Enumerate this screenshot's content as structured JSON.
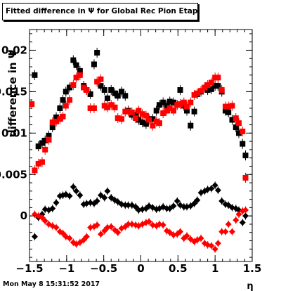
{
  "chart_data": {
    "type": "scatter",
    "title": "Fitted difference in  Ψ  for Global Rec Pion EtapT",
    "xlabel": "η",
    "ylabel": "difference in Ψ",
    "xlim": [
      -1.5,
      1.5
    ],
    "ylim": [
      -0.0055,
      0.0225
    ],
    "x_ticks": [
      -1.5,
      -1,
      -0.5,
      0,
      0.5,
      1,
      1.5
    ],
    "x_tick_labels": [
      "−1.5",
      "−1",
      "−0.5",
      "0",
      "0.5",
      "1",
      "1.5"
    ],
    "y_ticks": [
      0,
      0.005,
      0.01,
      0.015,
      0.02
    ],
    "y_tick_labels": [
      "0",
      "0.005",
      "0.01",
      "0.015",
      "0.02"
    ],
    "grid": false,
    "legend": "none",
    "series": [
      {
        "marker": "square",
        "color": "#000000",
        "points": [
          [
            -1.43,
            0.017
          ],
          [
            -1.38,
            0.0084
          ],
          [
            -1.33,
            0.0088
          ],
          [
            -1.29,
            0.0091
          ],
          [
            -1.24,
            0.0097
          ],
          [
            -1.19,
            0.0107
          ],
          [
            -1.14,
            0.0119
          ],
          [
            -1.09,
            0.013
          ],
          [
            -1.05,
            0.014
          ],
          [
            -1.01,
            0.015
          ],
          [
            -0.96,
            0.0155
          ],
          [
            -0.91,
            0.0188
          ],
          [
            -0.87,
            0.0182
          ],
          [
            -0.82,
            0.0175
          ],
          [
            -0.77,
            0.0157
          ],
          [
            -0.73,
            0.0152
          ],
          [
            -0.68,
            0.0147
          ],
          [
            -0.63,
            0.0183
          ],
          [
            -0.59,
            0.0197
          ],
          [
            -0.54,
            0.0157
          ],
          [
            -0.49,
            0.0152
          ],
          [
            -0.45,
            0.0142
          ],
          [
            -0.4,
            0.0152
          ],
          [
            -0.35,
            0.0148
          ],
          [
            -0.31,
            0.0145
          ],
          [
            -0.26,
            0.015
          ],
          [
            -0.21,
            0.0145
          ],
          [
            -0.17,
            0.0127
          ],
          [
            -0.12,
            0.0122
          ],
          [
            -0.07,
            0.0122
          ],
          [
            -0.03,
            0.0116
          ],
          [
            0.02,
            0.0113
          ],
          [
            0.07,
            0.0111
          ],
          [
            0.11,
            0.0117
          ],
          [
            0.16,
            0.0117
          ],
          [
            0.21,
            0.0127
          ],
          [
            0.25,
            0.0134
          ],
          [
            0.3,
            0.0137
          ],
          [
            0.35,
            0.0133
          ],
          [
            0.39,
            0.0138
          ],
          [
            0.44,
            0.0137
          ],
          [
            0.49,
            0.0134
          ],
          [
            0.53,
            0.0152
          ],
          [
            0.58,
            0.0133
          ],
          [
            0.62,
            0.0127
          ],
          [
            0.67,
            0.0109
          ],
          [
            0.72,
            0.0126
          ],
          [
            0.76,
            0.0147
          ],
          [
            0.81,
            0.015
          ],
          [
            0.86,
            0.0155
          ],
          [
            0.9,
            0.0152
          ],
          [
            0.95,
            0.0153
          ],
          [
            1.0,
            0.0157
          ],
          [
            1.04,
            0.0157
          ],
          [
            1.09,
            0.015
          ],
          [
            1.14,
            0.0127
          ],
          [
            1.18,
            0.0125
          ],
          [
            1.23,
            0.0116
          ],
          [
            1.28,
            0.0107
          ],
          [
            1.32,
            0.01
          ],
          [
            1.37,
            0.0087
          ],
          [
            1.41,
            0.0073
          ]
        ]
      },
      {
        "marker": "square",
        "color": "#ff0000",
        "points": [
          [
            -1.47,
            0.0135
          ],
          [
            -1.43,
            0.0055
          ],
          [
            -1.38,
            0.0063
          ],
          [
            -1.33,
            0.0065
          ],
          [
            -1.29,
            0.008
          ],
          [
            -1.24,
            0.0092
          ],
          [
            -1.19,
            0.0113
          ],
          [
            -1.14,
            0.0114
          ],
          [
            -1.09,
            0.0117
          ],
          [
            -1.05,
            0.012
          ],
          [
            -1.01,
            0.0133
          ],
          [
            -0.96,
            0.014
          ],
          [
            -0.91,
            0.0158
          ],
          [
            -0.87,
            0.0167
          ],
          [
            -0.82,
            0.017
          ],
          [
            -0.77,
            0.0155
          ],
          [
            -0.73,
            0.0152
          ],
          [
            -0.68,
            0.013
          ],
          [
            -0.63,
            0.013
          ],
          [
            -0.59,
            0.0162
          ],
          [
            -0.54,
            0.0165
          ],
          [
            -0.49,
            0.0133
          ],
          [
            -0.45,
            0.0131
          ],
          [
            -0.4,
            0.0134
          ],
          [
            -0.35,
            0.0131
          ],
          [
            -0.31,
            0.0118
          ],
          [
            -0.26,
            0.0117
          ],
          [
            -0.21,
            0.0126
          ],
          [
            -0.17,
            0.0126
          ],
          [
            -0.12,
            0.0125
          ],
          [
            -0.07,
            0.0118
          ],
          [
            -0.03,
            0.0127
          ],
          [
            0.02,
            0.0123
          ],
          [
            0.07,
            0.0121
          ],
          [
            0.11,
            0.0116
          ],
          [
            0.16,
            0.0109
          ],
          [
            0.21,
            0.0114
          ],
          [
            0.25,
            0.0112
          ],
          [
            0.3,
            0.0124
          ],
          [
            0.35,
            0.0127
          ],
          [
            0.39,
            0.013
          ],
          [
            0.44,
            0.0127
          ],
          [
            0.49,
            0.0134
          ],
          [
            0.53,
            0.0135
          ],
          [
            0.58,
            0.0137
          ],
          [
            0.62,
            0.0132
          ],
          [
            0.67,
            0.0137
          ],
          [
            0.72,
            0.0146
          ],
          [
            0.76,
            0.0148
          ],
          [
            0.81,
            0.0151
          ],
          [
            0.86,
            0.0155
          ],
          [
            0.9,
            0.0158
          ],
          [
            0.95,
            0.0161
          ],
          [
            1.0,
            0.0167
          ],
          [
            1.04,
            0.0167
          ],
          [
            1.09,
            0.0152
          ],
          [
            1.14,
            0.0132
          ],
          [
            1.18,
            0.0132
          ],
          [
            1.23,
            0.0133
          ],
          [
            1.28,
            0.0118
          ],
          [
            1.32,
            0.0112
          ],
          [
            1.37,
            0.0102
          ],
          [
            1.41,
            0.0046
          ]
        ]
      },
      {
        "marker": "diamond",
        "color": "#000000",
        "points": [
          [
            -1.43,
            -0.0025
          ],
          [
            -1.38,
            -0.0002
          ],
          [
            -1.33,
            0.0002
          ],
          [
            -1.29,
            0.0008
          ],
          [
            -1.24,
            0.0007
          ],
          [
            -1.19,
            0.0009
          ],
          [
            -1.14,
            0.0016
          ],
          [
            -1.09,
            0.0024
          ],
          [
            -1.05,
            0.0025
          ],
          [
            -1.01,
            0.0026
          ],
          [
            -0.96,
            0.0024
          ],
          [
            -0.91,
            0.0035
          ],
          [
            -0.87,
            0.003
          ],
          [
            -0.82,
            0.0025
          ],
          [
            -0.77,
            0.0014
          ],
          [
            -0.73,
            0.0015
          ],
          [
            -0.68,
            0.0016
          ],
          [
            -0.63,
            0.0015
          ],
          [
            -0.59,
            0.0018
          ],
          [
            -0.54,
            0.0025
          ],
          [
            -0.49,
            0.0022
          ],
          [
            -0.45,
            0.003
          ],
          [
            -0.4,
            0.0022
          ],
          [
            -0.35,
            0.0019
          ],
          [
            -0.31,
            0.0017
          ],
          [
            -0.26,
            0.0014
          ],
          [
            -0.21,
            0.0013
          ],
          [
            -0.17,
            0.0013
          ],
          [
            -0.12,
            0.0013
          ],
          [
            -0.07,
            0.0011
          ],
          [
            -0.03,
            0.0007
          ],
          [
            0.02,
            0.0008
          ],
          [
            0.07,
            0.0009
          ],
          [
            0.11,
            0.0012
          ],
          [
            0.16,
            0.001
          ],
          [
            0.21,
            0.0008
          ],
          [
            0.25,
            0.0009
          ],
          [
            0.3,
            0.0011
          ],
          [
            0.35,
            0.0009
          ],
          [
            0.39,
            0.0009
          ],
          [
            0.44,
            0.0012
          ],
          [
            0.49,
            0.0018
          ],
          [
            0.53,
            0.0013
          ],
          [
            0.58,
            0.0011
          ],
          [
            0.62,
            0.0011
          ],
          [
            0.67,
            0.0012
          ],
          [
            0.72,
            0.0015
          ],
          [
            0.76,
            0.0019
          ],
          [
            0.81,
            0.0028
          ],
          [
            0.86,
            0.003
          ],
          [
            0.9,
            0.0032
          ],
          [
            0.95,
            0.0033
          ],
          [
            1.0,
            0.0037
          ],
          [
            1.04,
            0.0031
          ],
          [
            1.09,
            0.0018
          ],
          [
            1.14,
            0.0014
          ],
          [
            1.18,
            0.0013
          ],
          [
            1.23,
            0.001
          ],
          [
            1.28,
            0.0009
          ],
          [
            1.32,
            0.0007
          ],
          [
            1.37,
            -0.0008
          ],
          [
            1.41,
            0.0
          ]
        ]
      },
      {
        "marker": "diamond",
        "color": "#ff0000",
        "points": [
          [
            -1.43,
            0.0002
          ],
          [
            -1.38,
            0.0
          ],
          [
            -1.33,
            -0.0002
          ],
          [
            -1.29,
            -0.0006
          ],
          [
            -1.24,
            -0.001
          ],
          [
            -1.19,
            -0.0012
          ],
          [
            -1.14,
            -0.0014
          ],
          [
            -1.09,
            -0.0019
          ],
          [
            -1.05,
            -0.0021
          ],
          [
            -1.01,
            -0.0025
          ],
          [
            -0.96,
            -0.0027
          ],
          [
            -0.91,
            -0.0032
          ],
          [
            -0.87,
            -0.0034
          ],
          [
            -0.82,
            -0.0032
          ],
          [
            -0.77,
            -0.0029
          ],
          [
            -0.73,
            -0.0025
          ],
          [
            -0.68,
            -0.0014
          ],
          [
            -0.63,
            -0.0013
          ],
          [
            -0.59,
            -0.0011
          ],
          [
            -0.54,
            -0.0022
          ],
          [
            -0.49,
            -0.0018
          ],
          [
            -0.45,
            -0.0014
          ],
          [
            -0.4,
            -0.0013
          ],
          [
            -0.35,
            -0.0017
          ],
          [
            -0.31,
            -0.002
          ],
          [
            -0.26,
            -0.0015
          ],
          [
            -0.21,
            -0.0013
          ],
          [
            -0.17,
            -0.001
          ],
          [
            -0.12,
            -0.001
          ],
          [
            -0.07,
            -0.0011
          ],
          [
            -0.03,
            -0.0012
          ],
          [
            0.02,
            -0.001
          ],
          [
            0.07,
            -0.0008
          ],
          [
            0.11,
            -0.0007
          ],
          [
            0.16,
            -0.0011
          ],
          [
            0.21,
            -0.0012
          ],
          [
            0.25,
            -0.001
          ],
          [
            0.3,
            -0.0011
          ],
          [
            0.35,
            -0.0018
          ],
          [
            0.39,
            -0.002
          ],
          [
            0.44,
            -0.0023
          ],
          [
            0.49,
            -0.0022
          ],
          [
            0.53,
            -0.0019
          ],
          [
            0.58,
            -0.0027
          ],
          [
            0.62,
            -0.0024
          ],
          [
            0.67,
            -0.0028
          ],
          [
            0.72,
            -0.0031
          ],
          [
            0.76,
            -0.0029
          ],
          [
            0.81,
            -0.0027
          ],
          [
            0.86,
            -0.0033
          ],
          [
            0.9,
            -0.0035
          ],
          [
            0.95,
            -0.0036
          ],
          [
            1.0,
            -0.004
          ],
          [
            1.04,
            -0.0033
          ],
          [
            1.09,
            -0.0019
          ],
          [
            1.14,
            -0.0019
          ],
          [
            1.18,
            -0.001
          ],
          [
            1.23,
            -0.0019
          ],
          [
            1.28,
            -0.0005
          ],
          [
            1.32,
            0.0002
          ],
          [
            1.37,
            0.0006
          ],
          [
            1.41,
            0.0007
          ]
        ]
      }
    ]
  },
  "footer": {
    "date": "Mon May  8 15:31:52 2017"
  }
}
